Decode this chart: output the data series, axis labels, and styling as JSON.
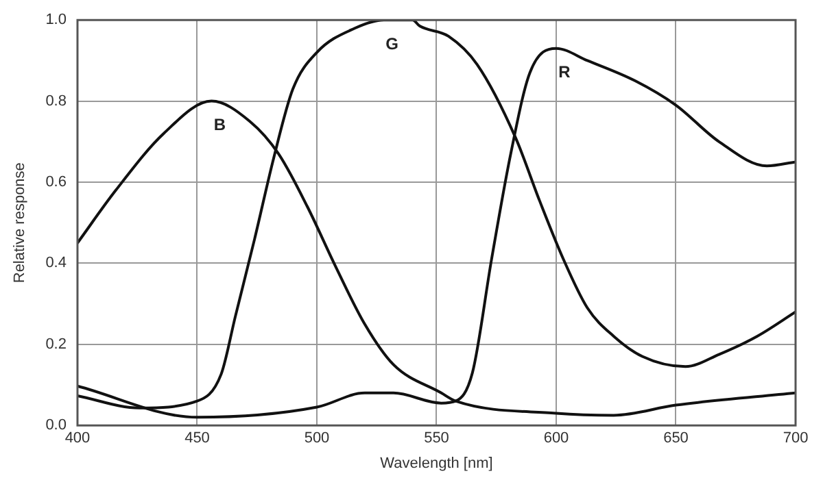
{
  "chart_data": {
    "type": "line",
    "xlabel": "Wavelength [nm]",
    "ylabel": "Relative response",
    "xlim": [
      400,
      700
    ],
    "ylim": [
      0,
      1
    ],
    "xticks": [
      400,
      450,
      500,
      550,
      600,
      650,
      700
    ],
    "yticks": [
      {
        "value": 0,
        "label": "0.0"
      },
      {
        "value": 0.2,
        "label": "0.2"
      },
      {
        "value": 0.4,
        "label": "0.4"
      },
      {
        "value": 0.6,
        "label": "0.6"
      },
      {
        "value": 0.8,
        "label": "0.8"
      },
      {
        "value": 1,
        "label": "1.0"
      }
    ],
    "grid": true,
    "legend": false,
    "marker": "none",
    "line_style": "solid",
    "series": [
      {
        "name": "B",
        "color": "#111111",
        "x": [
          400,
          416,
          436,
          456,
          472,
          484,
          496,
          508,
          520,
          532,
          552,
          558,
          600,
          624,
          650,
          700
        ],
        "values": [
          0.45,
          0.58,
          0.72,
          0.8,
          0.75,
          0.67,
          0.54,
          0.39,
          0.25,
          0.15,
          0.08,
          0.06,
          0.03,
          0.025,
          0.05,
          0.08
        ]
      },
      {
        "name": "G",
        "color": "#111111",
        "x": [
          400,
          426,
          450,
          460,
          466,
          474,
          482,
          490,
          500,
          516,
          528,
          540,
          543,
          555,
          567,
          583,
          593,
          603,
          613,
          624,
          636,
          654,
          668,
          684,
          700
        ],
        "values": [
          0.073,
          0.043,
          0.06,
          0.126,
          0.27,
          0.46,
          0.66,
          0.83,
          0.92,
          0.98,
          1.0,
          1.0,
          0.985,
          0.96,
          0.89,
          0.71,
          0.555,
          0.41,
          0.29,
          0.22,
          0.17,
          0.145,
          0.175,
          0.22,
          0.28
        ]
      },
      {
        "name": "R",
        "color": "#111111",
        "x": [
          400,
          450,
          500,
          520,
          532,
          552,
          558,
          565,
          573,
          581,
          589,
          600,
          613,
          633,
          650,
          668,
          688,
          700
        ],
        "values": [
          0.097,
          0.02,
          0.045,
          0.08,
          0.08,
          0.055,
          0.06,
          0.13,
          0.41,
          0.67,
          0.87,
          0.93,
          0.9,
          0.85,
          0.79,
          0.7,
          0.64,
          0.65
        ]
      }
    ]
  }
}
